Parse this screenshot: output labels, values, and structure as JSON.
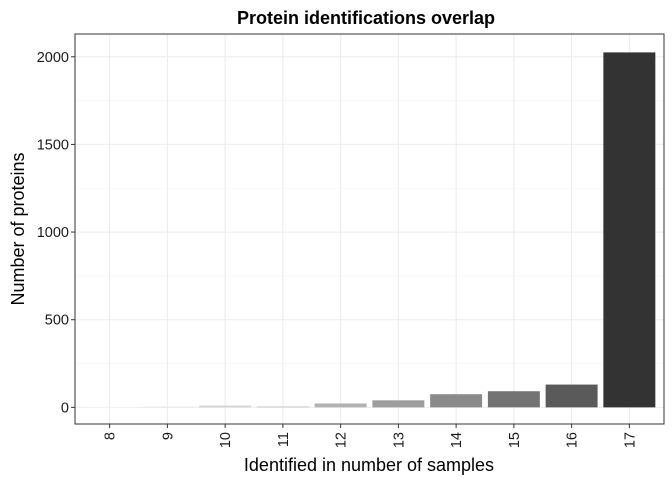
{
  "chart_data": {
    "type": "bar",
    "title": "Protein identifications overlap",
    "xlabel": "Identified in number of samples",
    "ylabel": "Number of proteins",
    "categories": [
      "8",
      "9",
      "10",
      "11",
      "12",
      "13",
      "14",
      "15",
      "16",
      "17"
    ],
    "values": [
      2,
      4,
      10,
      5,
      22,
      40,
      75,
      92,
      130,
      2025
    ],
    "bar_colors": [
      "#f2f2f2",
      "#e6e6e6",
      "#d6d6d6",
      "#c4c4c4",
      "#b2b2b2",
      "#9e9e9e",
      "#8a8a8a",
      "#737373",
      "#5a5a5a",
      "#333333"
    ],
    "yticks": [
      0,
      500,
      1000,
      1500,
      2000
    ],
    "ytick_labels": [
      "0",
      "500",
      "1000",
      "1500",
      "2000"
    ],
    "ylim": [
      -95,
      2130
    ],
    "grid": true,
    "legend": "none"
  }
}
